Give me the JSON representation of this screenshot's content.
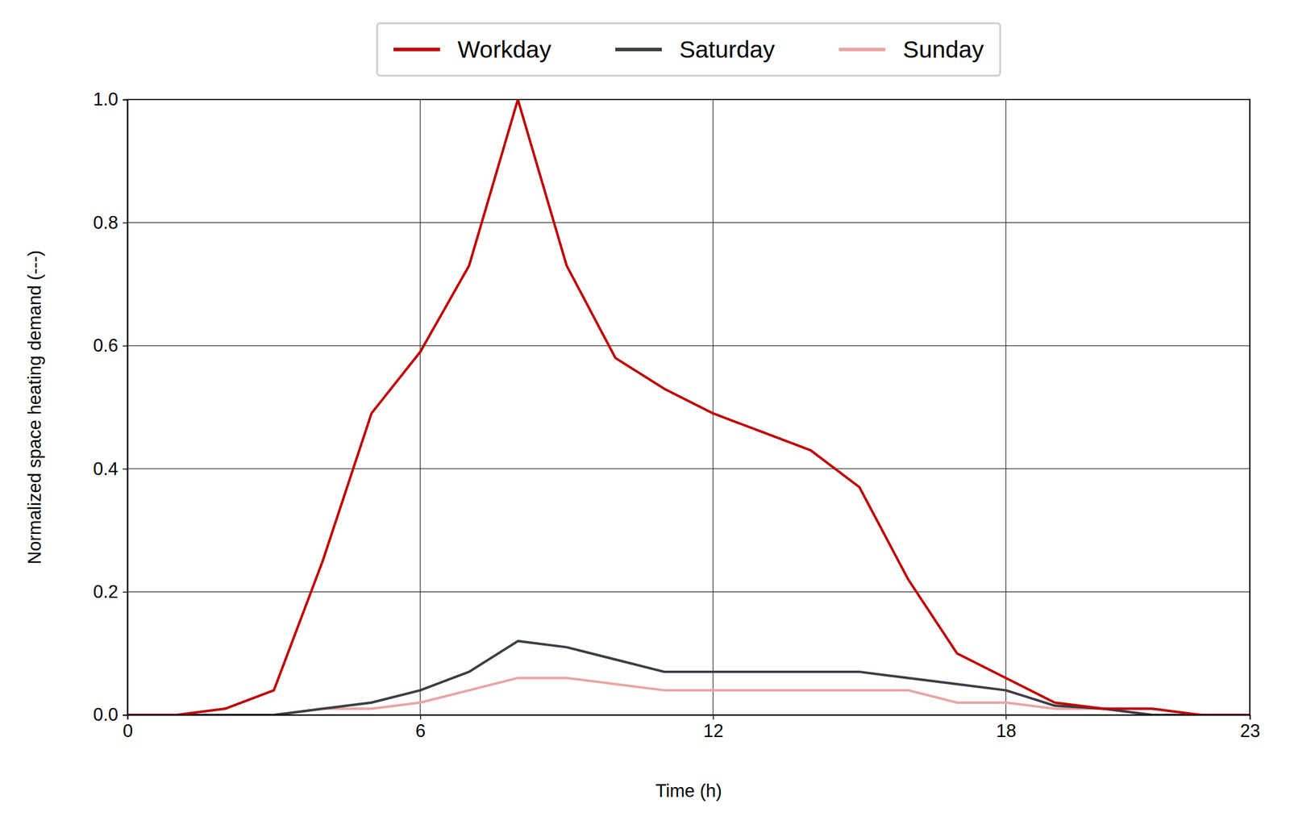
{
  "chart_data": {
    "type": "line",
    "x_label": "Time (h)",
    "y_label": "Normalized space heating demand (---)",
    "x": [
      0,
      1,
      2,
      3,
      4,
      5,
      6,
      7,
      8,
      9,
      10,
      11,
      12,
      13,
      14,
      15,
      16,
      17,
      18,
      19,
      20,
      21,
      22,
      23
    ],
    "series": [
      {
        "name": "Workday",
        "color": "#c00000",
        "values": [
          0,
          0,
          0.01,
          0.04,
          0.25,
          0.49,
          0.59,
          0.73,
          1.0,
          0.73,
          0.58,
          0.53,
          0.49,
          0.46,
          0.43,
          0.37,
          0.22,
          0.1,
          0.06,
          0.02,
          0.01,
          0.01,
          0,
          0
        ]
      },
      {
        "name": "Saturday",
        "color": "#3a3f44",
        "values": [
          0,
          0,
          0,
          0,
          0.01,
          0.02,
          0.04,
          0.07,
          0.12,
          0.11,
          0.09,
          0.07,
          0.07,
          0.07,
          0.07,
          0.07,
          0.06,
          0.05,
          0.04,
          0.015,
          0.01,
          0,
          0,
          0
        ]
      },
      {
        "name": "Sunday",
        "color": "#e8a5a5",
        "values": [
          0,
          0,
          0,
          0,
          0.01,
          0.01,
          0.02,
          0.04,
          0.06,
          0.06,
          0.05,
          0.04,
          0.04,
          0.04,
          0.04,
          0.04,
          0.04,
          0.02,
          0.02,
          0.01,
          0.01,
          0,
          0,
          0
        ]
      }
    ],
    "xlim": [
      0,
      23
    ],
    "ylim": [
      0,
      1
    ],
    "xticks": [
      0,
      6,
      12,
      18,
      23
    ],
    "yticks": [
      {
        "value": 0,
        "label": "0.0"
      },
      0.2,
      0.4,
      0.6,
      0.8,
      {
        "value": 1,
        "label": "1.0"
      }
    ],
    "grid": true,
    "legend": "top"
  }
}
